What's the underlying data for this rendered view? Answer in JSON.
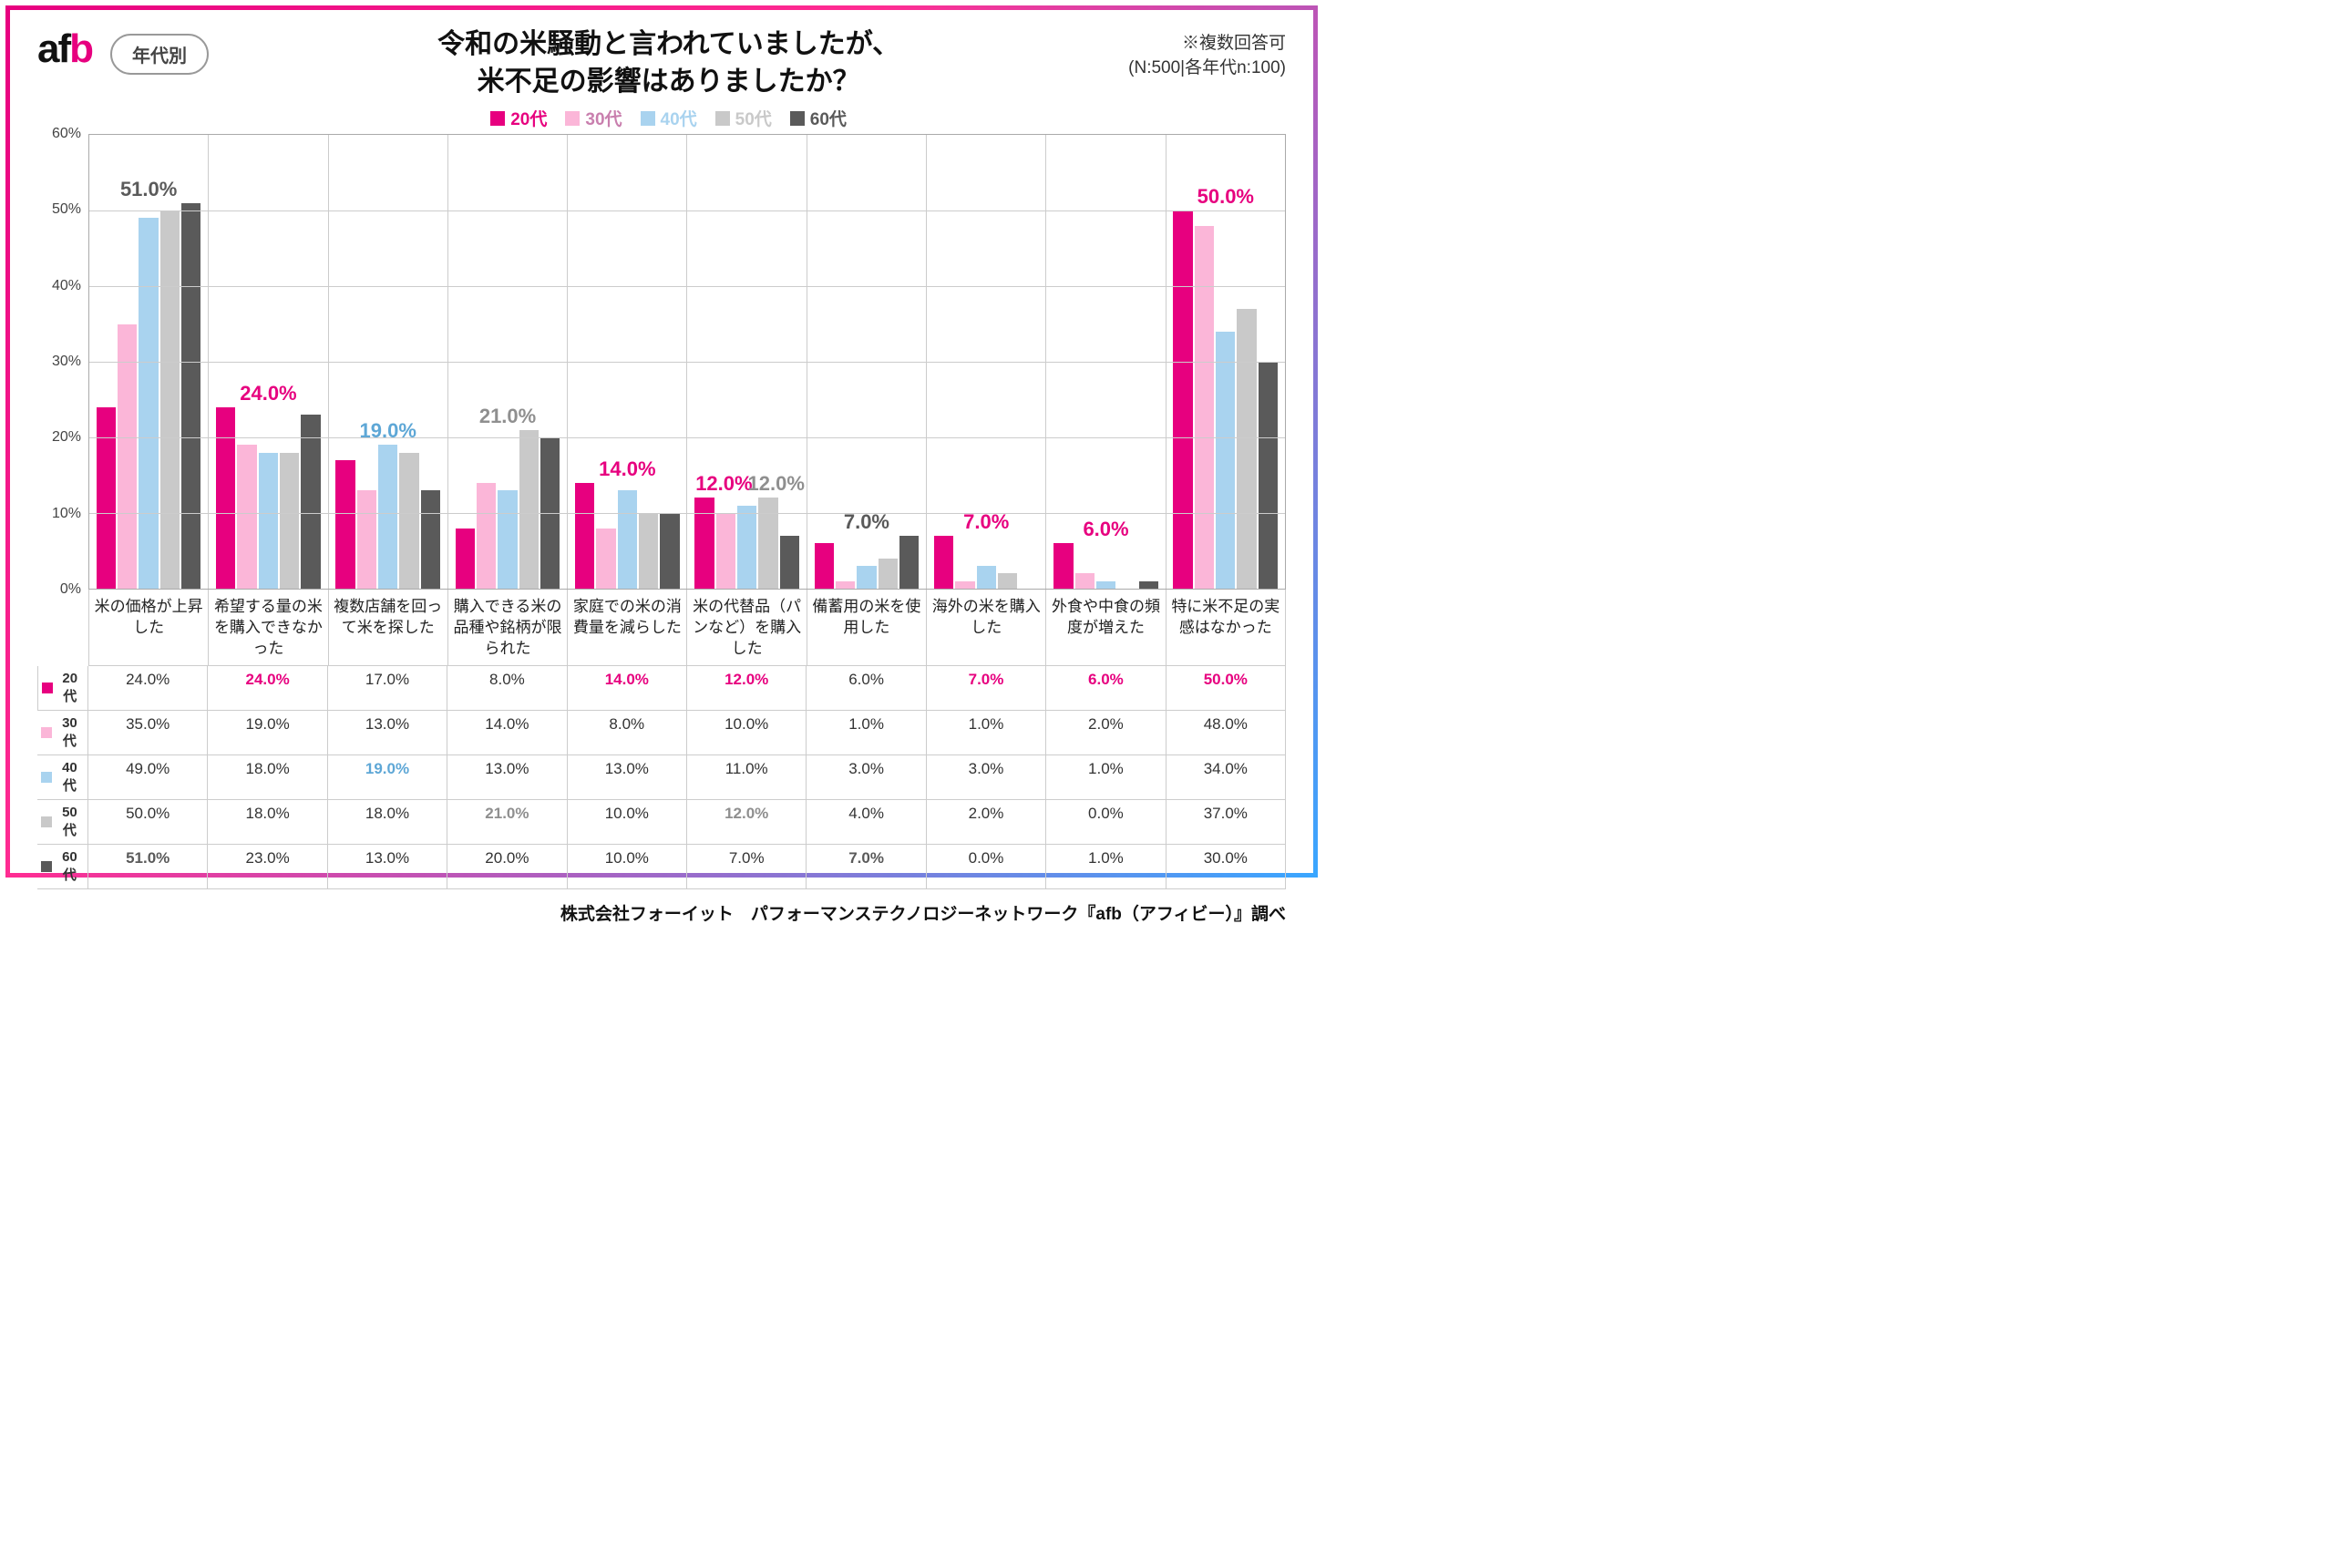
{
  "meta": {
    "logo_a": "a",
    "logo_f": "f",
    "logo_b": "b",
    "badge": "年代別",
    "title_l1": "令和の米騒動と言われていましたが、",
    "title_l2": "米不足の影響はありましたか？",
    "note_l1": "※複数回答可",
    "note_l2": "(N:500|各年代n:100)",
    "footer": "株式会社フォーイット　パフォーマンステクノロジーネットワーク『afb（アフィビー）』調べ"
  },
  "chart": {
    "type": "grouped-bar",
    "ylim": [
      0,
      60
    ],
    "ytick_step": 10,
    "y_unit": "%",
    "background_color": "#ffffff",
    "grid_color": "#cccccc",
    "series": [
      {
        "key": "20s",
        "label": "20代",
        "color": "#e7007f"
      },
      {
        "key": "30s",
        "label": "30代",
        "color": "#fbb6d8"
      },
      {
        "key": "40s",
        "label": "40代",
        "color": "#a9d3ef"
      },
      {
        "key": "50s",
        "label": "50代",
        "color": "#c9c9c9"
      },
      {
        "key": "60s",
        "label": "60代",
        "color": "#5a5a5a"
      }
    ],
    "categories": [
      {
        "label": "米の価格が上昇した",
        "v": [
          24,
          35,
          49,
          50,
          51
        ],
        "top": {
          "text": "51.0%",
          "series": 4
        }
      },
      {
        "label": "希望する量の米を購入できなかった",
        "v": [
          24,
          19,
          18,
          18,
          23
        ],
        "top": {
          "text": "24.0%",
          "series": 0
        }
      },
      {
        "label": "複数店舗を回って米を探した",
        "v": [
          17,
          13,
          19,
          18,
          13
        ],
        "top": {
          "text": "19.0%",
          "series": 2
        }
      },
      {
        "label": "購入できる米の品種や銘柄が限られた",
        "v": [
          8,
          14,
          13,
          21,
          20
        ],
        "top": {
          "text": "21.0%",
          "series": 3
        }
      },
      {
        "label": "家庭での米の消費量を減らした",
        "v": [
          14,
          8,
          13,
          10,
          10
        ],
        "top": {
          "text": "14.0%",
          "series": 0
        }
      },
      {
        "label": "米の代替品（パンなど）を購入した",
        "v": [
          12,
          10,
          11,
          12,
          7
        ],
        "top": {
          "text": "12.0%",
          "series": 0
        },
        "top2": {
          "text": "12.0%",
          "series": 3
        }
      },
      {
        "label": "備蓄用の米を使用した",
        "v": [
          6,
          1,
          3,
          4,
          7
        ],
        "top": {
          "text": "7.0%",
          "series": 4
        }
      },
      {
        "label": "海外の米を購入した",
        "v": [
          7,
          1,
          3,
          2,
          0
        ],
        "top": {
          "text": "7.0%",
          "series": 0
        }
      },
      {
        "label": "外食や中食の頻度が増えた",
        "v": [
          6,
          2,
          1,
          0,
          1
        ],
        "top": {
          "text": "6.0%",
          "series": 0
        }
      },
      {
        "label": "特に米不足の実感はなかった",
        "v": [
          50,
          48,
          34,
          37,
          30
        ],
        "top": {
          "text": "50.0%",
          "series": 0
        }
      }
    ],
    "table_highlights": {
      "0": {
        "4": true
      },
      "1": {
        "0": true
      },
      "2": {
        "2": true
      },
      "3": {
        "3": true
      },
      "4": {
        "0": true
      },
      "5": {
        "0": true,
        "3": true
      },
      "6": {
        "4": true
      },
      "7": {
        "0": true
      },
      "8": {
        "0": true
      },
      "9": {
        "0": true
      }
    }
  }
}
